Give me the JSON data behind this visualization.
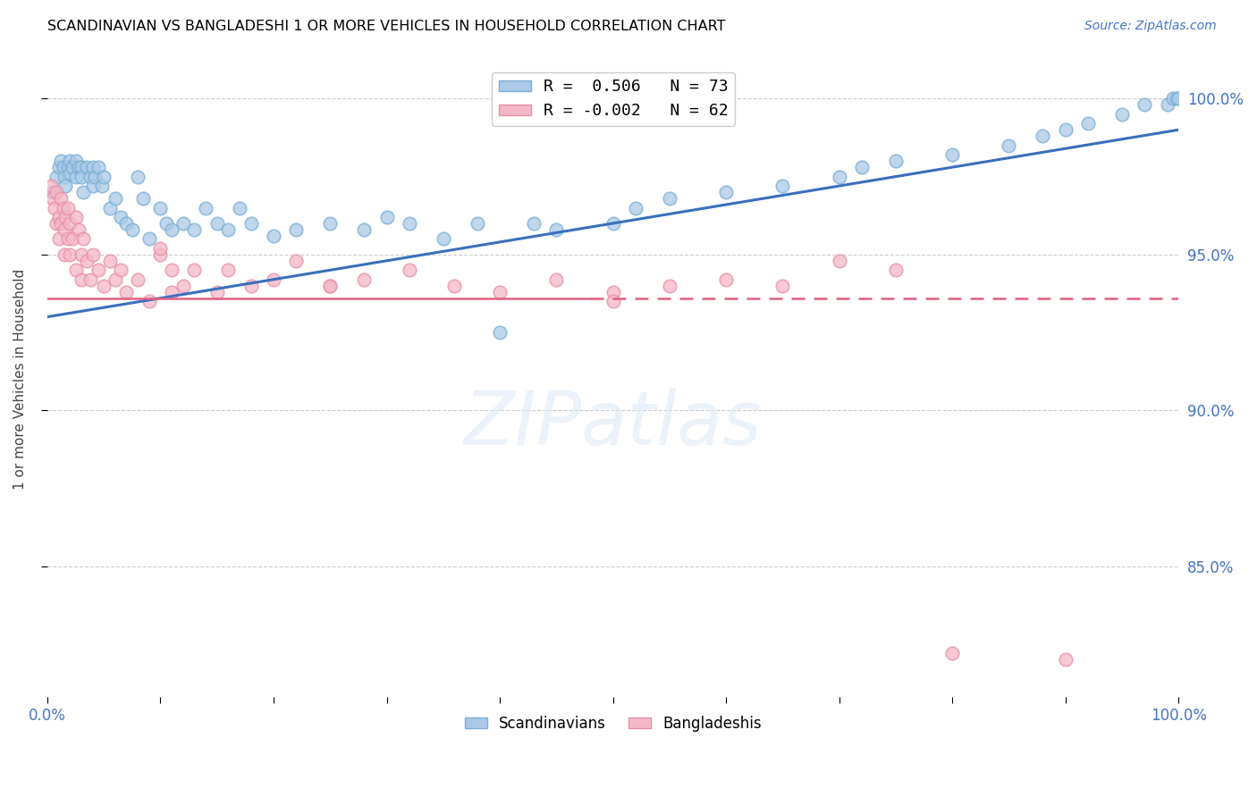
{
  "title": "SCANDINAVIAN VS BANGLADESHI 1 OR MORE VEHICLES IN HOUSEHOLD CORRELATION CHART",
  "source": "Source: ZipAtlas.com",
  "ylabel": "1 or more Vehicles in Household",
  "legend_label1": "R =  0.506   N = 73",
  "legend_label2": "R = -0.002   N = 62",
  "legend_series1": "Scandinavians",
  "legend_series2": "Bangladeshis",
  "xlim": [
    0.0,
    1.0
  ],
  "ylim": [
    0.808,
    1.012
  ],
  "yticks": [
    0.85,
    0.9,
    0.95,
    1.0
  ],
  "ytick_labels": [
    "85.0%",
    "90.0%",
    "95.0%",
    "100.0%"
  ],
  "watermark": "ZIPatlas",
  "blue_color": "#aac9e8",
  "blue_edge": "#7bafd4",
  "pink_color": "#f4b8c8",
  "pink_edge": "#e890a8",
  "trendline_blue": "#3a6fbd",
  "trendline_pink": "#e06080",
  "scan_x": [
    0.005,
    0.008,
    0.01,
    0.012,
    0.014,
    0.015,
    0.016,
    0.018,
    0.02,
    0.02,
    0.022,
    0.025,
    0.025,
    0.028,
    0.03,
    0.03,
    0.032,
    0.035,
    0.038,
    0.04,
    0.04,
    0.042,
    0.045,
    0.048,
    0.05,
    0.055,
    0.06,
    0.065,
    0.07,
    0.075,
    0.08,
    0.085,
    0.09,
    0.1,
    0.105,
    0.11,
    0.12,
    0.13,
    0.14,
    0.15,
    0.16,
    0.17,
    0.18,
    0.2,
    0.22,
    0.25,
    0.28,
    0.3,
    0.32,
    0.35,
    0.38,
    0.4,
    0.43,
    0.45,
    0.5,
    0.52,
    0.55,
    0.6,
    0.65,
    0.7,
    0.72,
    0.75,
    0.8,
    0.85,
    0.88,
    0.9,
    0.92,
    0.95,
    0.97,
    0.99,
    0.995,
    0.998,
    1.0
  ],
  "scan_y": [
    0.97,
    0.975,
    0.978,
    0.98,
    0.978,
    0.975,
    0.972,
    0.978,
    0.98,
    0.976,
    0.978,
    0.98,
    0.975,
    0.978,
    0.978,
    0.975,
    0.97,
    0.978,
    0.975,
    0.978,
    0.972,
    0.975,
    0.978,
    0.972,
    0.975,
    0.965,
    0.968,
    0.962,
    0.96,
    0.958,
    0.975,
    0.968,
    0.955,
    0.965,
    0.96,
    0.958,
    0.96,
    0.958,
    0.965,
    0.96,
    0.958,
    0.965,
    0.96,
    0.956,
    0.958,
    0.96,
    0.958,
    0.962,
    0.96,
    0.955,
    0.96,
    0.925,
    0.96,
    0.958,
    0.96,
    0.965,
    0.968,
    0.97,
    0.972,
    0.975,
    0.978,
    0.98,
    0.982,
    0.985,
    0.988,
    0.99,
    0.992,
    0.995,
    0.998,
    0.998,
    1.0,
    1.0,
    1.0
  ],
  "bang_x": [
    0.003,
    0.005,
    0.006,
    0.008,
    0.008,
    0.01,
    0.01,
    0.012,
    0.012,
    0.014,
    0.015,
    0.015,
    0.016,
    0.018,
    0.018,
    0.02,
    0.02,
    0.022,
    0.025,
    0.025,
    0.028,
    0.03,
    0.03,
    0.032,
    0.035,
    0.038,
    0.04,
    0.045,
    0.05,
    0.055,
    0.06,
    0.065,
    0.07,
    0.08,
    0.09,
    0.1,
    0.11,
    0.12,
    0.13,
    0.15,
    0.16,
    0.18,
    0.2,
    0.22,
    0.25,
    0.28,
    0.32,
    0.36,
    0.4,
    0.45,
    0.5,
    0.55,
    0.6,
    0.1,
    0.65,
    0.7,
    0.11,
    0.25,
    0.5,
    0.75,
    0.8,
    0.9
  ],
  "bang_y": [
    0.972,
    0.968,
    0.965,
    0.97,
    0.96,
    0.962,
    0.955,
    0.968,
    0.96,
    0.965,
    0.958,
    0.95,
    0.962,
    0.955,
    0.965,
    0.96,
    0.95,
    0.955,
    0.962,
    0.945,
    0.958,
    0.95,
    0.942,
    0.955,
    0.948,
    0.942,
    0.95,
    0.945,
    0.94,
    0.948,
    0.942,
    0.945,
    0.938,
    0.942,
    0.935,
    0.95,
    0.945,
    0.94,
    0.945,
    0.938,
    0.945,
    0.94,
    0.942,
    0.948,
    0.94,
    0.942,
    0.945,
    0.94,
    0.938,
    0.942,
    0.938,
    0.94,
    0.942,
    0.952,
    0.94,
    0.948,
    0.938,
    0.94,
    0.935,
    0.945,
    0.822,
    0.82
  ],
  "blue_trendline_y0": 0.93,
  "blue_trendline_y1": 0.99,
  "pink_trendline_y": 0.936
}
